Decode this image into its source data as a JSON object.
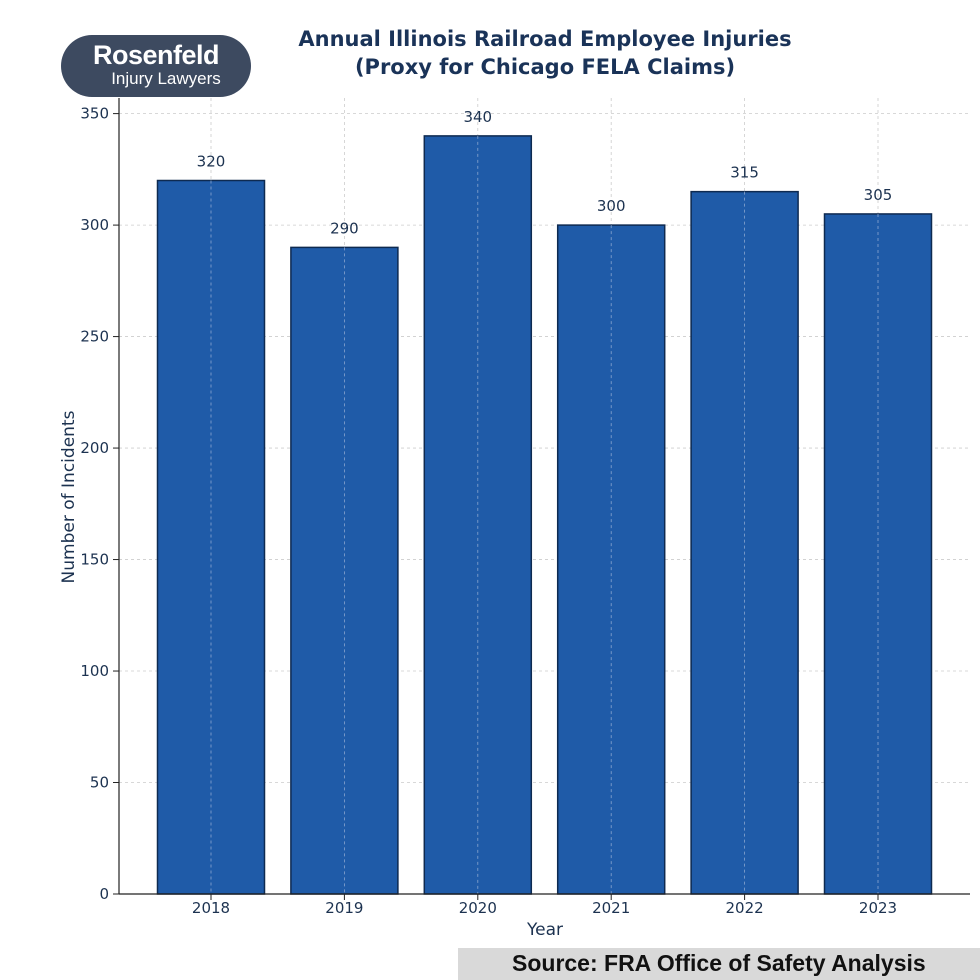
{
  "logo": {
    "line1": "Rosenfeld",
    "line2": "Injury Lawyers"
  },
  "source": "Source: FRA Office of Safety Analysis",
  "colors": {
    "bar": "#1f5ba8",
    "bar_edge": "#0e2a50",
    "text": "#1c3250",
    "title": "#1a3358"
  },
  "chart_data": {
    "type": "bar",
    "title": [
      "Annual Illinois Railroad Employee Injuries",
      "(Proxy for Chicago FELA Claims)"
    ],
    "xlabel": "Year",
    "ylabel": "Number of Incidents",
    "categories": [
      "2018",
      "2019",
      "2020",
      "2021",
      "2022",
      "2023"
    ],
    "values": [
      320,
      290,
      340,
      300,
      315,
      305
    ],
    "data_labels": [
      "320",
      "290",
      "340",
      "300",
      "315",
      "305"
    ],
    "ylim": [
      0,
      357
    ],
    "yticks": [
      0,
      50,
      100,
      150,
      200,
      250,
      300,
      350
    ],
    "grid": true
  }
}
